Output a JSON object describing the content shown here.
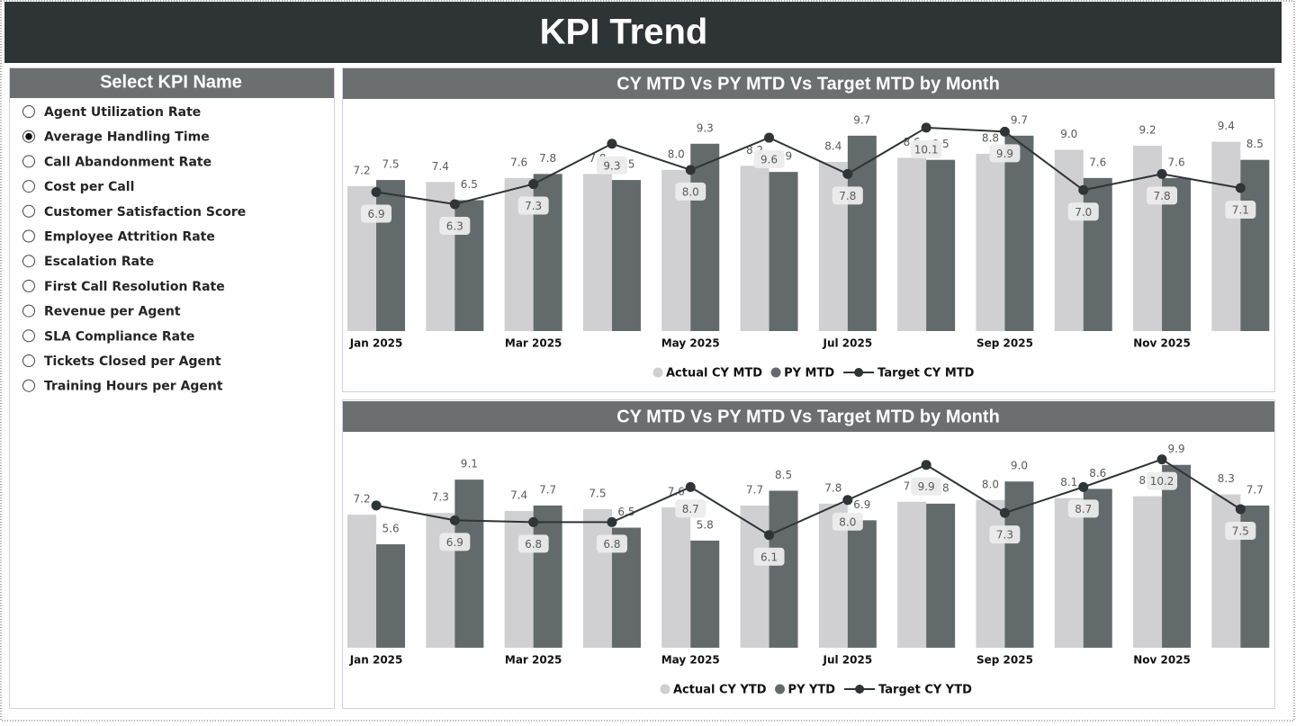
{
  "header": {
    "title": "KPI Trend"
  },
  "slicer": {
    "title": "Select KPI Name",
    "selected_index": 1,
    "items": [
      "Agent Utilization Rate",
      "Average Handling Time",
      "Call Abandonment Rate",
      "Cost per Call",
      "Customer Satisfaction Score",
      "Employee Attrition Rate",
      "Escalation Rate",
      "First Call Resolution Rate",
      "Revenue per Agent",
      "SLA Compliance Rate",
      "Tickets Closed per Agent",
      "Training Hours per Agent"
    ]
  },
  "chart_data": [
    {
      "type": "bar-line",
      "title": "CY MTD Vs PY MTD Vs Target MTD by Month",
      "categories": [
        "Jan 2025",
        null,
        "Mar 2025",
        null,
        "May 2025",
        null,
        "Jul 2025",
        null,
        "Sep 2025",
        null,
        "Nov 2025",
        null
      ],
      "ylim": [
        0,
        11.3
      ],
      "series": [
        {
          "name": "Actual CY MTD",
          "kind": "bar",
          "color": "#d0d0d2",
          "values": [
            7.2,
            7.4,
            7.6,
            7.8,
            8.0,
            8.2,
            8.4,
            8.6,
            8.8,
            9.0,
            9.2,
            9.4
          ],
          "value_labels": [
            "7.2",
            "7.4",
            "7.6",
            "7.8",
            "8.0",
            "8.2",
            "8.4",
            "8.6",
            "8.8",
            "9.0",
            "9.2",
            "9.4"
          ]
        },
        {
          "name": "PY MTD",
          "kind": "bar",
          "color": "#636a6b",
          "values": [
            7.5,
            6.5,
            7.8,
            7.5,
            9.3,
            7.9,
            9.7,
            8.5,
            9.7,
            7.6,
            7.6,
            8.5
          ],
          "value_labels": [
            "7.5",
            "6.5",
            "7.8",
            "7.5",
            "9.3",
            "7.9",
            "9.7",
            "8.5",
            "9.7",
            "7.6",
            "7.6",
            "8.5"
          ]
        },
        {
          "name": "Target CY MTD",
          "kind": "line",
          "color": "#2f3436",
          "values": [
            6.9,
            6.3,
            7.3,
            9.3,
            8.0,
            9.6,
            7.8,
            10.1,
            9.9,
            7.0,
            7.8,
            7.1
          ],
          "value_labels": [
            "6.9",
            "6.3",
            "7.3",
            "9.3",
            "8.0",
            "9.6",
            "7.8",
            "10.1",
            "9.9",
            "7.0",
            "7.8",
            "7.1"
          ]
        }
      ]
    },
    {
      "type": "bar-line",
      "title": "CY MTD Vs PY MTD Vs Target MTD by Month",
      "categories": [
        "Jan 2025",
        null,
        "Mar 2025",
        null,
        "May 2025",
        null,
        "Jul 2025",
        null,
        "Sep 2025",
        null,
        "Nov 2025",
        null
      ],
      "ylim": [
        0,
        11.3
      ],
      "series": [
        {
          "name": "Actual CY YTD",
          "kind": "bar",
          "color": "#d0d0d2",
          "values": [
            7.2,
            7.3,
            7.4,
            7.5,
            7.6,
            7.7,
            7.8,
            7.9,
            8.0,
            8.1,
            8.2,
            8.3
          ],
          "value_labels": [
            "7.2",
            "7.3",
            "7.4",
            "7.5",
            "7.6",
            "7.7",
            "7.8",
            "7.9",
            "8.0",
            "8.1",
            "8.2",
            "8.3"
          ]
        },
        {
          "name": "PY YTD",
          "kind": "bar",
          "color": "#636a6b",
          "values": [
            5.6,
            9.1,
            7.7,
            6.5,
            5.8,
            8.5,
            6.9,
            7.8,
            9.0,
            8.6,
            9.9,
            7.7
          ],
          "value_labels": [
            "5.6",
            "9.1",
            "7.7",
            "6.5",
            "5.8",
            "8.5",
            "6.9",
            "7.8",
            "9.0",
            "8.6",
            "9.9",
            "7.7"
          ]
        },
        {
          "name": "Target CY YTD",
          "kind": "line",
          "color": "#2f3436",
          "values": [
            7.7,
            6.9,
            6.8,
            6.8,
            8.7,
            6.1,
            8.0,
            9.9,
            7.3,
            8.7,
            10.2,
            7.5
          ],
          "value_labels": [
            null,
            "6.9",
            "6.8",
            "6.8",
            "8.7",
            "6.1",
            "8.0",
            "9.9",
            "7.3",
            "8.7",
            "10.2",
            "7.5"
          ]
        }
      ]
    }
  ]
}
